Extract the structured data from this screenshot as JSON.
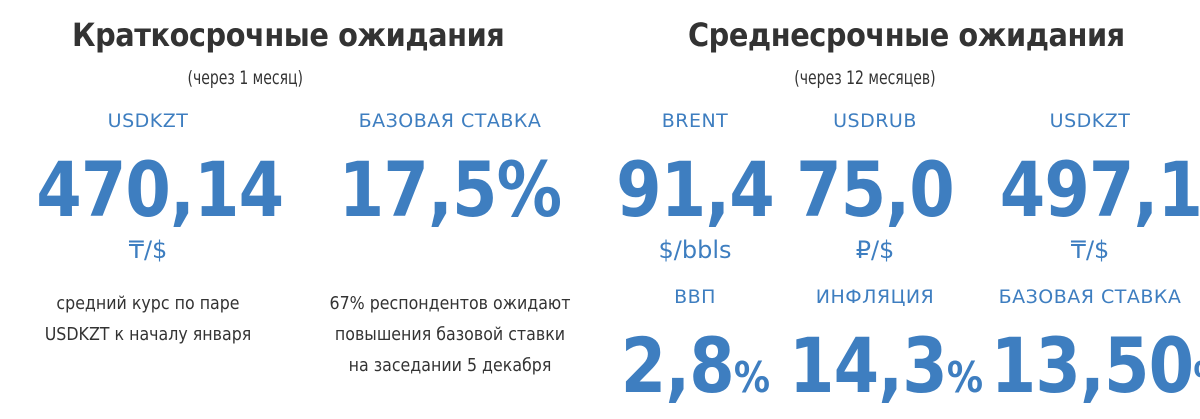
{
  "short_term": {
    "title": "Краткосрочные ожидания",
    "subtitle": "(через 1 месяц)",
    "usdkzt": {
      "label": "USDKZT",
      "value": "470,14",
      "unit": "₸/$",
      "note_line1": "средний курс по паре",
      "note_line2": "USDKZT к началу января"
    },
    "base_rate": {
      "label": "БАЗОВАЯ СТАВКА",
      "value": "17,5%",
      "note_line1": "67% респондентов ожидают",
      "note_line2": "повышения базовой ставки",
      "note_line3": "на заседании 5 декабря"
    }
  },
  "mid_term": {
    "title": "Среднесрочные ожидания",
    "subtitle": "(через 12 месяцев)",
    "brent": {
      "label": "BRENT",
      "value": "91,4",
      "unit": "$/bbls"
    },
    "usdrub": {
      "label": "USDRUB",
      "value": "75,0",
      "unit": "₽/$"
    },
    "usdkzt": {
      "label": "USDKZT",
      "value": "497,1",
      "unit": "₸/$"
    },
    "gdp": {
      "label": "ВВП",
      "value": "2,8",
      "pct": "%"
    },
    "inflation": {
      "label": "ИНФЛЯЦИЯ",
      "value": "14,3",
      "pct": "%"
    },
    "base_rate": {
      "label": "БАЗОВАЯ СТАВКА",
      "value": "13,50",
      "pct": "%"
    }
  },
  "colors": {
    "accent": "#3e7ec0",
    "text": "#333333",
    "background": "#ffffff"
  }
}
